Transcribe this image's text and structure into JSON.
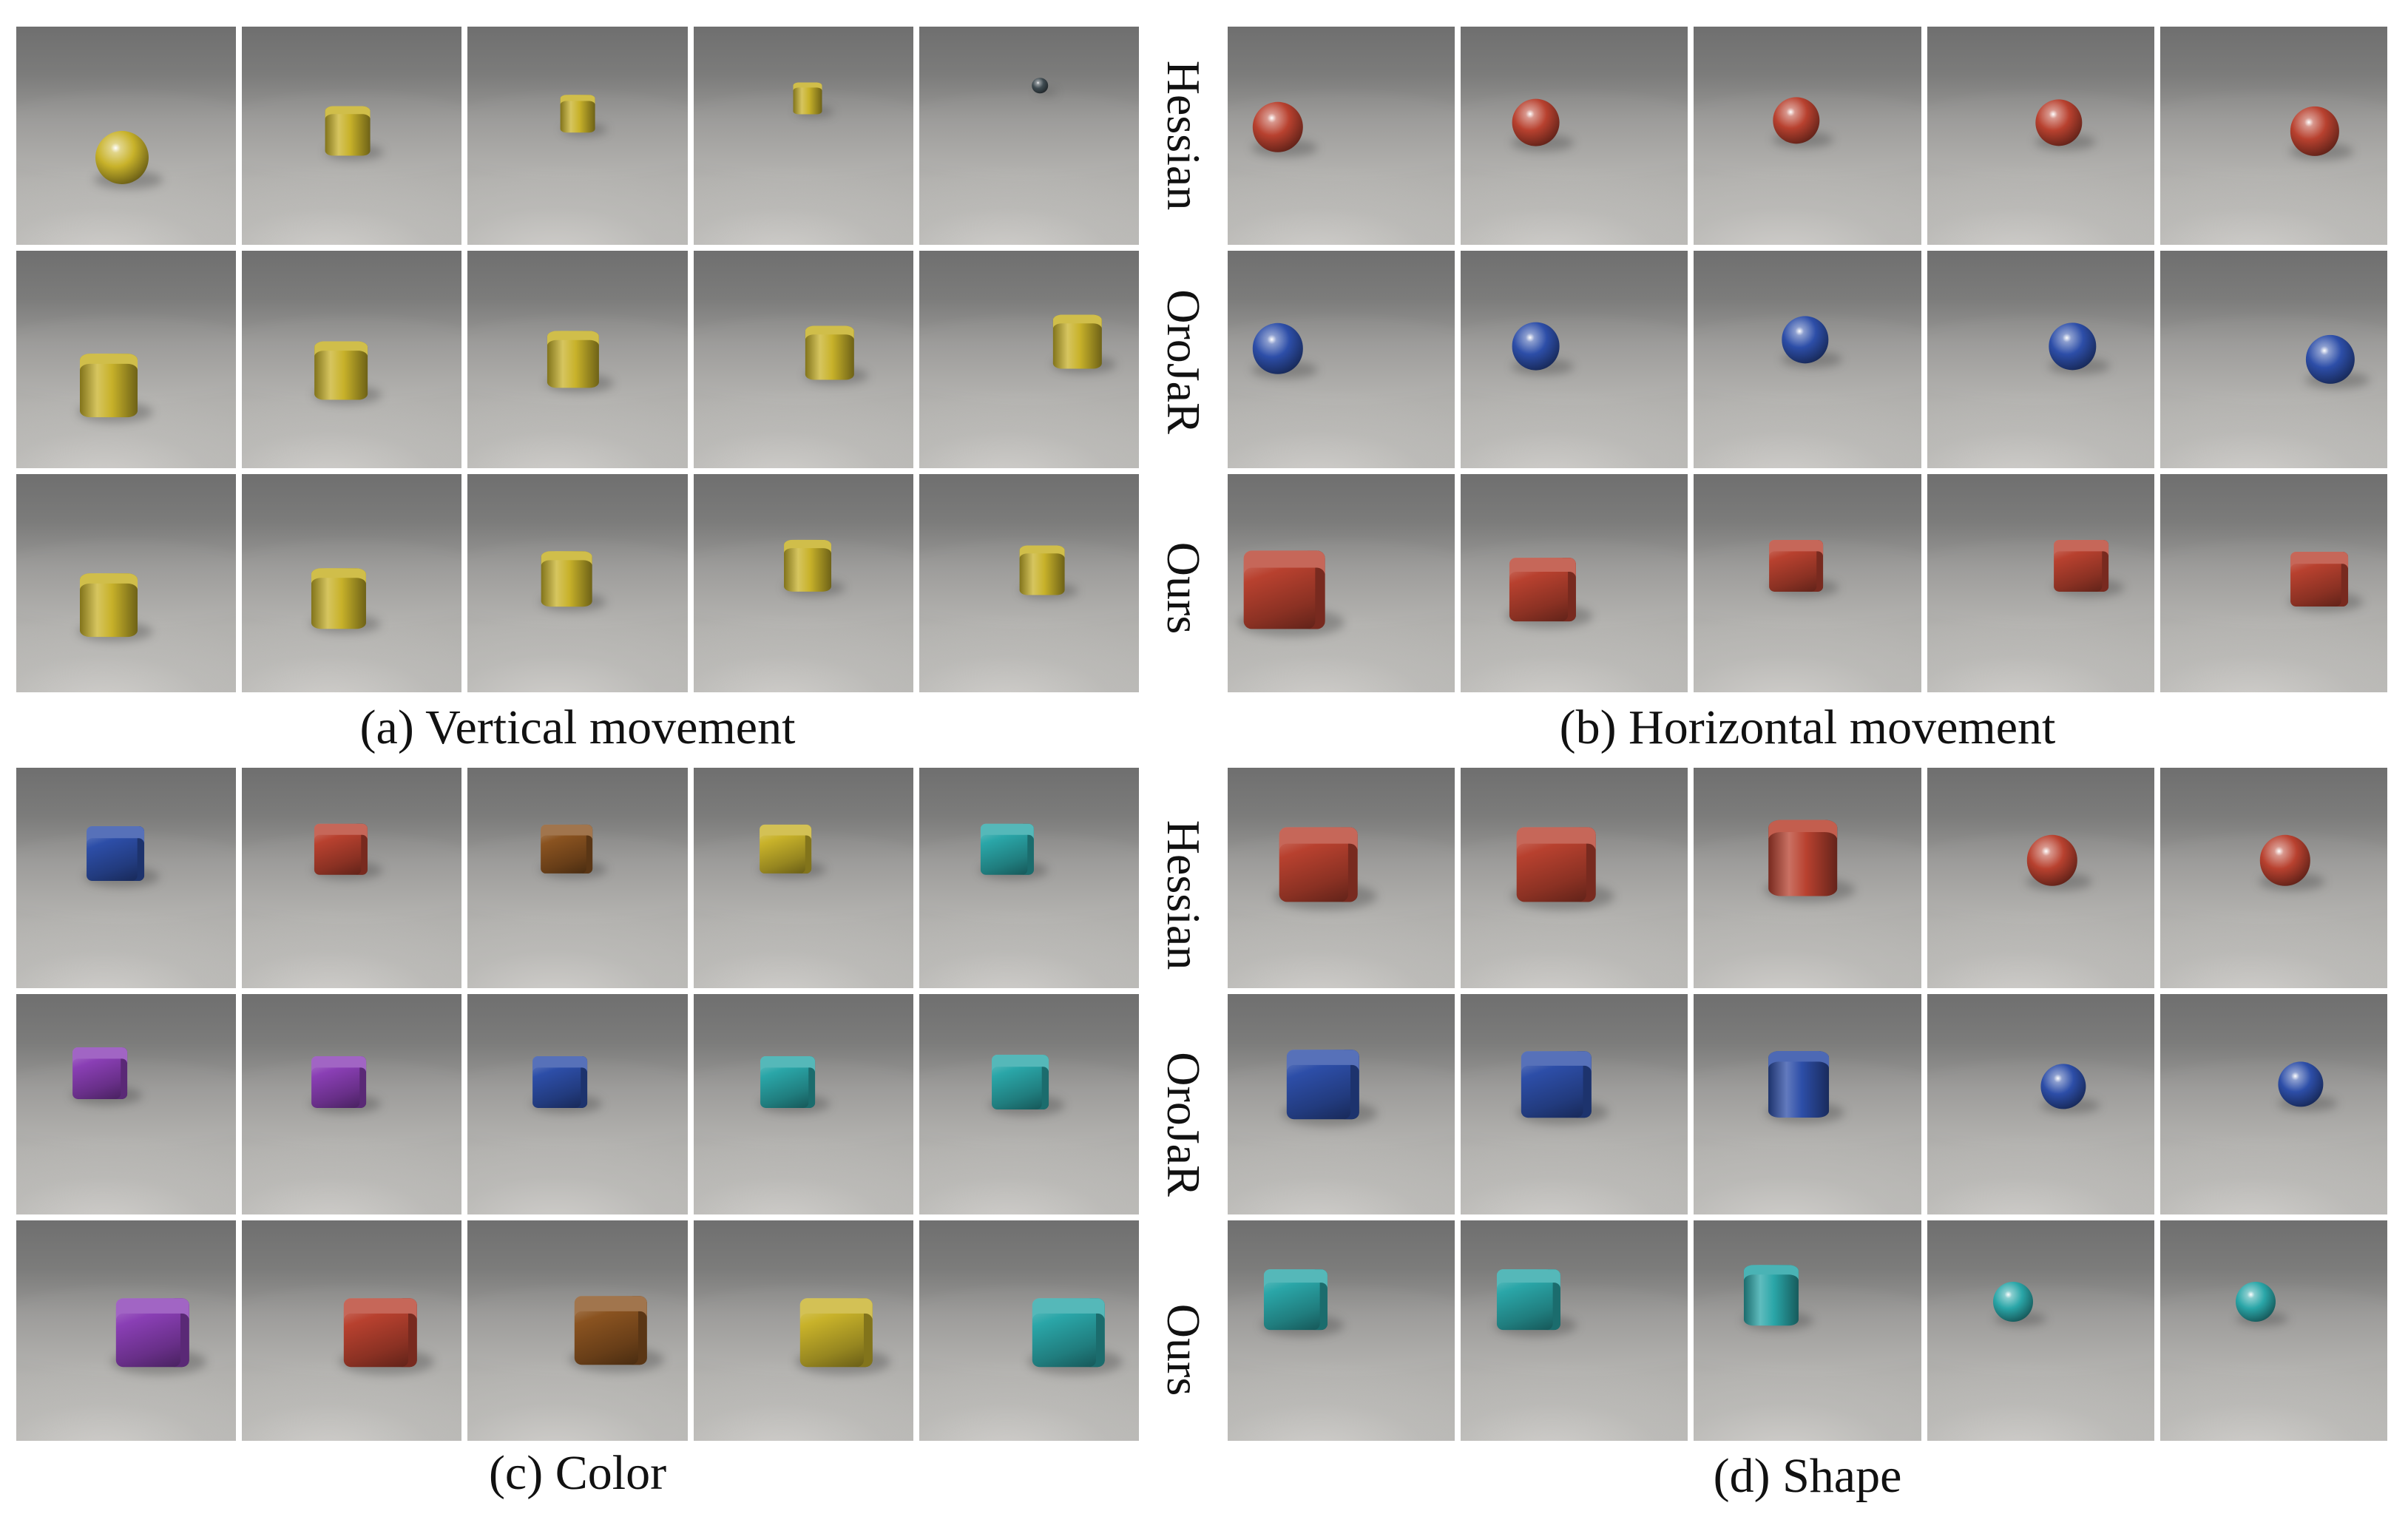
{
  "colors": {
    "yellow": "#c8b22a",
    "red": "#b8412f",
    "blue": "#2d4ea8",
    "brown": "#8a5320",
    "cyan": "#2aa6a8",
    "purple": "#8a3fb5",
    "dark": "#3e4a50"
  },
  "panels": {
    "a": {
      "caption": "(a) Vertical movement",
      "rows": [
        [
          {
            "shape": "sphere",
            "color": "yellow"
          },
          {
            "shape": "cylinder",
            "color": "yellow"
          },
          {
            "shape": "cylinder",
            "color": "yellow"
          },
          {
            "shape": "cylinder",
            "color": "yellow"
          },
          {
            "shape": "sphere",
            "color": "dark"
          }
        ],
        [
          {
            "shape": "cylinder",
            "color": "yellow"
          },
          {
            "shape": "cylinder",
            "color": "yellow"
          },
          {
            "shape": "cylinder",
            "color": "yellow"
          },
          {
            "shape": "cylinder",
            "color": "yellow"
          },
          {
            "shape": "cylinder",
            "color": "yellow"
          }
        ],
        [
          {
            "shape": "cylinder",
            "color": "yellow"
          },
          {
            "shape": "cylinder",
            "color": "yellow"
          },
          {
            "shape": "cylinder",
            "color": "yellow"
          },
          {
            "shape": "cylinder",
            "color": "yellow"
          },
          {
            "shape": "cylinder",
            "color": "yellow"
          }
        ]
      ]
    },
    "b": {
      "caption": "(b) Horizontal movement",
      "row_labels": [
        "Hessian",
        "OroJaR",
        "Ours"
      ],
      "rows": [
        [
          {
            "shape": "sphere",
            "color": "red"
          },
          {
            "shape": "sphere",
            "color": "red"
          },
          {
            "shape": "sphere",
            "color": "red"
          },
          {
            "shape": "sphere",
            "color": "red"
          },
          {
            "shape": "sphere",
            "color": "red"
          }
        ],
        [
          {
            "shape": "sphere",
            "color": "blue"
          },
          {
            "shape": "sphere",
            "color": "blue"
          },
          {
            "shape": "sphere",
            "color": "blue"
          },
          {
            "shape": "sphere",
            "color": "blue"
          },
          {
            "shape": "sphere",
            "color": "blue"
          }
        ],
        [
          {
            "shape": "cube",
            "color": "red"
          },
          {
            "shape": "cube",
            "color": "red"
          },
          {
            "shape": "cube",
            "color": "red"
          },
          {
            "shape": "cube",
            "color": "red"
          },
          {
            "shape": "cube",
            "color": "red"
          }
        ]
      ]
    },
    "c": {
      "caption": "(c) Color",
      "rows": [
        [
          {
            "shape": "cube",
            "color": "blue"
          },
          {
            "shape": "cube",
            "color": "red"
          },
          {
            "shape": "cube",
            "color": "brown"
          },
          {
            "shape": "cube",
            "color": "yellow"
          },
          {
            "shape": "cube",
            "color": "cyan"
          }
        ],
        [
          {
            "shape": "cube",
            "color": "purple"
          },
          {
            "shape": "cube",
            "color": "purple"
          },
          {
            "shape": "cube",
            "color": "blue"
          },
          {
            "shape": "cube",
            "color": "cyan"
          },
          {
            "shape": "cube",
            "color": "cyan"
          }
        ],
        [
          {
            "shape": "cube",
            "color": "purple"
          },
          {
            "shape": "cube",
            "color": "red"
          },
          {
            "shape": "cube",
            "color": "brown"
          },
          {
            "shape": "cube",
            "color": "yellow"
          },
          {
            "shape": "cube",
            "color": "cyan"
          }
        ]
      ]
    },
    "d": {
      "caption": "(d) Shape",
      "row_labels": [
        "Hessian",
        "OroJaR",
        "Ours"
      ],
      "rows": [
        [
          {
            "shape": "cube",
            "color": "red"
          },
          {
            "shape": "cube",
            "color": "red"
          },
          {
            "shape": "cylinder",
            "color": "red"
          },
          {
            "shape": "sphere",
            "color": "red"
          },
          {
            "shape": "sphere",
            "color": "red"
          }
        ],
        [
          {
            "shape": "cube",
            "color": "blue"
          },
          {
            "shape": "cube",
            "color": "blue"
          },
          {
            "shape": "cylinder",
            "color": "blue"
          },
          {
            "shape": "sphere",
            "color": "blue"
          },
          {
            "shape": "sphere",
            "color": "blue"
          }
        ],
        [
          {
            "shape": "cube",
            "color": "cyan"
          },
          {
            "shape": "cube",
            "color": "cyan"
          },
          {
            "shape": "cylinder",
            "color": "cyan"
          },
          {
            "shape": "sphere",
            "color": "cyan"
          },
          {
            "shape": "sphere",
            "color": "cyan"
          }
        ]
      ]
    }
  }
}
